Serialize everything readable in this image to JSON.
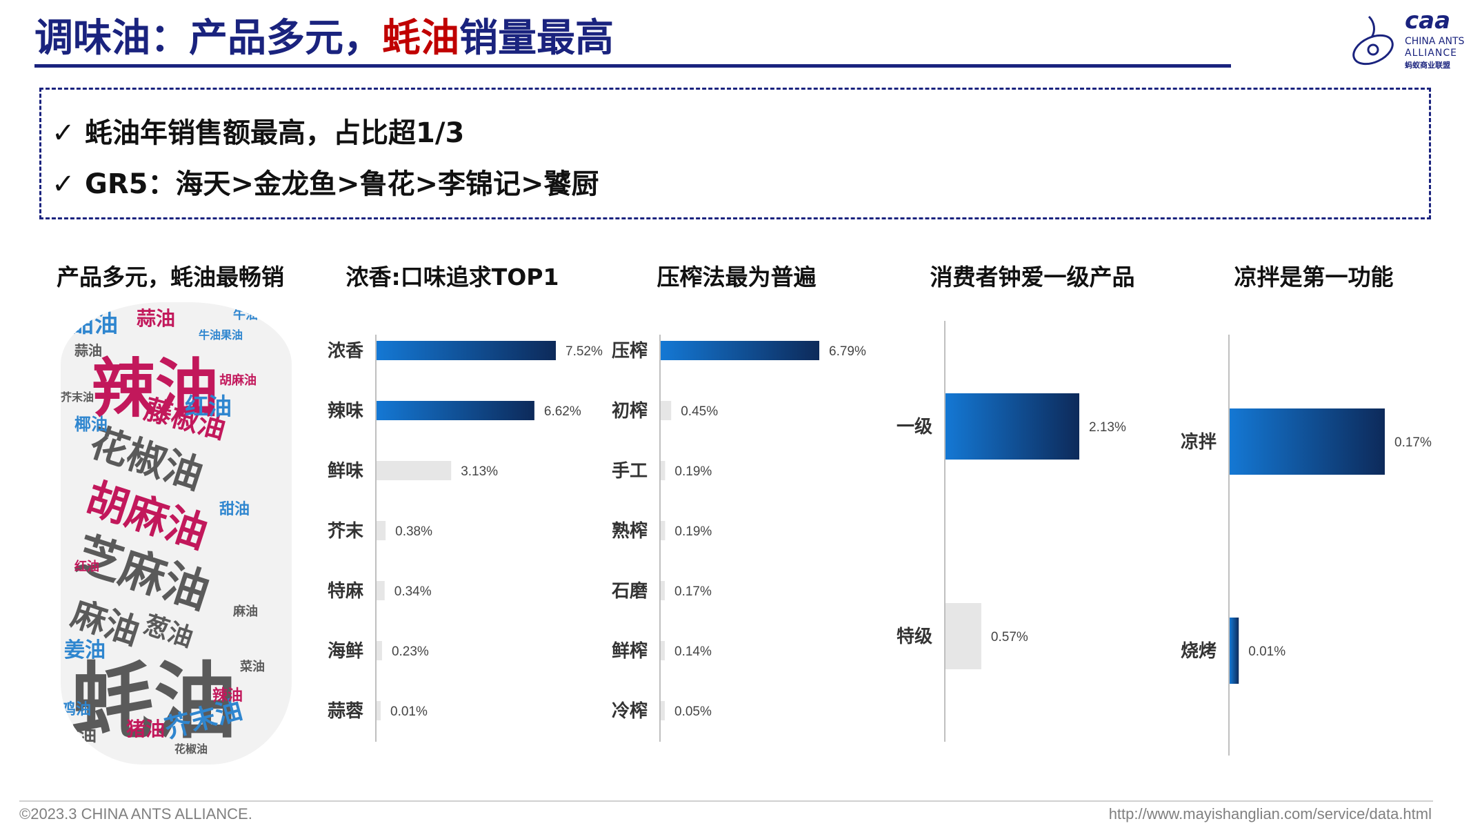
{
  "header": {
    "title_prefix": "调味油：产品多元，",
    "title_highlight": "蚝油",
    "title_suffix": "销量最高",
    "logo_mark": "caa",
    "logo_line1": "CHINA ANTS",
    "logo_line2": "ALLIANCE",
    "logo_line3": "蚂蚁商业联盟"
  },
  "summary": {
    "bullets": [
      "蚝油年销售额最高，占比超1/3",
      "GR5：海天>金龙鱼>鲁花>李锦记>饕厨"
    ]
  },
  "wordcloud": {
    "title": "产品多元，蚝油最畅销",
    "words": [
      "辣油",
      "蚝油",
      "芝麻油",
      "胡麻油",
      "花椒油",
      "藤椒油",
      "麻油",
      "红油",
      "甜油",
      "蒜油",
      "芥末油",
      "葱油",
      "姜油",
      "猪油",
      "椰油",
      "虾油",
      "鸡油",
      "牛油",
      "辣油",
      "红油",
      "甜油",
      "蒜油",
      "牛油果油",
      "芥末油",
      "胡麻油",
      "菜油",
      "花椒油",
      "麻油"
    ]
  },
  "colors": {
    "brand": "#1a237e",
    "highlight": "#c00000",
    "bar_blue_light": "#1478d4",
    "bar_blue_dark": "#0d2a5a",
    "bar_gray": "#e6e6e6",
    "wc_magenta": "#c2185b",
    "wc_gray": "#5a5a5a",
    "wc_blue": "#2f86cf"
  },
  "chart_data": [
    {
      "type": "bar",
      "title": "浓香:口味追求TOP1",
      "categories": [
        "浓香",
        "辣味",
        "鲜味",
        "芥末",
        "特麻",
        "海鲜",
        "蒜蓉"
      ],
      "values": [
        7.52,
        6.62,
        3.13,
        0.38,
        0.34,
        0.23,
        0.01
      ],
      "labels": [
        "7.52%",
        "6.62%",
        "3.13%",
        "0.38%",
        "0.34%",
        "0.23%",
        "0.01%"
      ],
      "highlight_count": 2
    },
    {
      "type": "bar",
      "title": "压榨法最为普遍",
      "categories": [
        "压榨",
        "初榨",
        "手工",
        "熟榨",
        "石磨",
        "鲜榨",
        "冷榨"
      ],
      "values": [
        6.79,
        0.45,
        0.19,
        0.19,
        0.17,
        0.14,
        0.05
      ],
      "labels": [
        "6.79%",
        "0.45%",
        "0.19%",
        "0.19%",
        "0.17%",
        "0.14%",
        "0.05%"
      ],
      "highlight_count": 1
    },
    {
      "type": "bar",
      "title": "消费者钟爱一级产品",
      "categories": [
        "一级",
        "特级"
      ],
      "values": [
        2.13,
        0.57
      ],
      "labels": [
        "2.13%",
        "0.57%"
      ],
      "highlight_count": 1
    },
    {
      "type": "bar",
      "title": "凉拌是第一功能",
      "categories": [
        "凉拌",
        "烧烤"
      ],
      "values": [
        0.17,
        0.01
      ],
      "labels": [
        "0.17%",
        "0.01%"
      ],
      "highlight_count": 2
    }
  ],
  "footer": {
    "copyright": "©2023.3 CHINA ANTS ALLIANCE.",
    "url": "http://www.mayishanglian.com/service/data.html"
  }
}
